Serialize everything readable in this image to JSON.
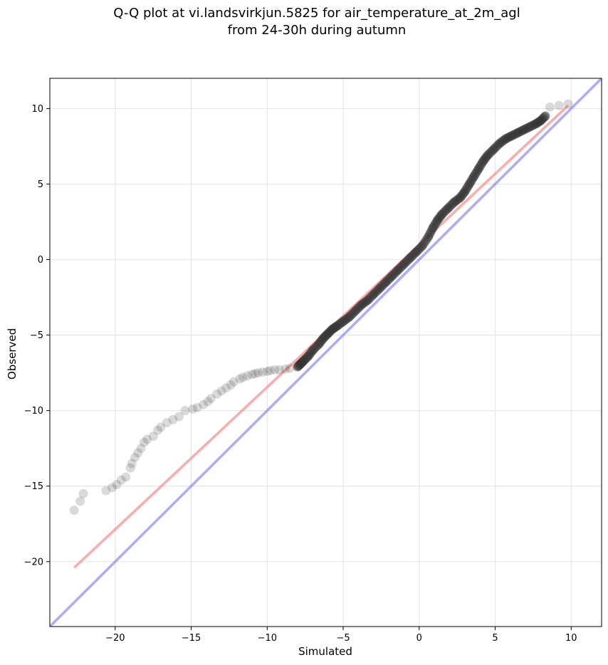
{
  "chart_data": {
    "type": "scatter",
    "title": [
      "Q-Q plot at vi.landsvirkjun.5825 for air_temperature_at_2m_agl",
      "from 24-30h during autumn"
    ],
    "xlabel": "Simulated",
    "ylabel": "Observed",
    "xlim": [
      -24.3,
      12.0
    ],
    "ylim": [
      -24.3,
      12.0
    ],
    "xticks": [
      -20,
      -15,
      -10,
      -5,
      0,
      5,
      10
    ],
    "yticks": [
      -20,
      -15,
      -10,
      -5,
      0,
      5,
      10
    ],
    "xtick_labels": [
      "−20",
      "−15",
      "−10",
      "−5",
      "0",
      "5",
      "10"
    ],
    "ytick_labels": [
      "−20",
      "−15",
      "−10",
      "−5",
      "0",
      "5",
      "10"
    ],
    "grid": true,
    "legend": "none",
    "colors": {
      "points": "#333333",
      "fit_line": "#ff6666",
      "identity_line": "#6666ff",
      "grid": "#e6e6e6"
    },
    "reference_lines": [
      {
        "kind": "fit",
        "x": [
          -22.7,
          9.8
        ],
        "y": [
          -20.4,
          10.2
        ]
      },
      {
        "kind": "identity",
        "x": [
          -24.3,
          12.0
        ],
        "y": [
          -24.3,
          12.0
        ]
      }
    ],
    "quantiles": {
      "x": [
        -22.7,
        -22.3,
        -22.1,
        -20.6,
        -20.2,
        -19.9,
        -19.6,
        -19.3,
        -19.0,
        -18.9,
        -18.7,
        -18.5,
        -18.3,
        -18.1,
        -17.9,
        -17.5,
        -17.2,
        -17.0,
        -16.6,
        -16.2,
        -15.8,
        -15.4,
        -14.9,
        -14.6,
        -14.2,
        -13.9,
        -13.7,
        -13.3,
        -13.0,
        -12.7,
        -12.4,
        -12.2,
        -11.8,
        -11.6,
        -11.3,
        -11.0,
        -10.8,
        -10.6,
        -10.3,
        -10.0,
        -9.8,
        -9.5,
        -9.2,
        -8.8,
        -8.5,
        -8.0,
        -7.8,
        -7.6,
        -7.3,
        -7.0,
        -6.6,
        -6.3,
        -6.0,
        -5.7,
        -5.4,
        -5.0,
        -4.6,
        -4.2,
        -3.8,
        -3.4,
        -3.0,
        -2.6,
        -2.2,
        -1.8,
        -1.4,
        -1.0,
        -0.6,
        -0.2,
        0.2,
        0.6,
        0.9,
        1.2,
        1.5,
        1.9,
        2.3,
        2.7,
        3.0,
        3.3,
        3.6,
        3.9,
        4.2,
        4.5,
        4.9,
        5.3,
        5.7,
        6.1,
        6.5,
        6.9,
        7.3,
        7.7,
        8.0,
        8.3,
        8.6,
        9.2,
        9.8
      ],
      "y": [
        -16.6,
        -16.0,
        -15.5,
        -15.3,
        -15.1,
        -14.9,
        -14.6,
        -14.4,
        -13.8,
        -13.5,
        -13.1,
        -12.8,
        -12.5,
        -12.1,
        -11.9,
        -11.7,
        -11.3,
        -11.1,
        -10.8,
        -10.6,
        -10.4,
        -10.0,
        -9.9,
        -9.8,
        -9.6,
        -9.4,
        -9.2,
        -8.9,
        -8.7,
        -8.5,
        -8.3,
        -8.1,
        -7.9,
        -7.8,
        -7.7,
        -7.6,
        -7.55,
        -7.5,
        -7.45,
        -7.4,
        -7.35,
        -7.3,
        -7.3,
        -7.25,
        -7.2,
        -7.1,
        -6.9,
        -6.7,
        -6.4,
        -6.0,
        -5.6,
        -5.2,
        -4.9,
        -4.6,
        -4.4,
        -4.1,
        -3.8,
        -3.4,
        -3.0,
        -2.7,
        -2.3,
        -1.9,
        -1.5,
        -1.1,
        -0.7,
        -0.3,
        0.1,
        0.5,
        0.9,
        1.5,
        2.1,
        2.6,
        3.0,
        3.4,
        3.8,
        4.1,
        4.5,
        5.0,
        5.5,
        6.0,
        6.5,
        6.9,
        7.3,
        7.7,
        8.0,
        8.2,
        8.4,
        8.6,
        8.8,
        9.0,
        9.2,
        9.5,
        10.1,
        10.2,
        10.3
      ]
    }
  }
}
